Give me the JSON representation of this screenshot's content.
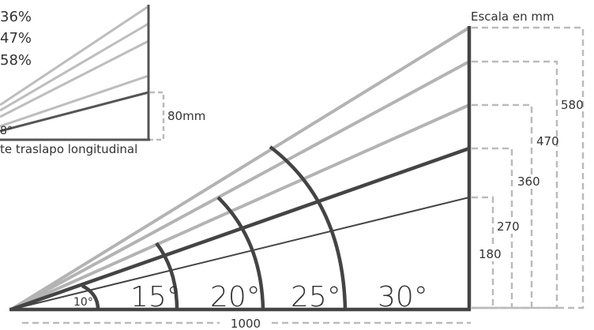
{
  "scale_title": "Escala en mm",
  "base_length_label": "1000",
  "heights": [
    {
      "label": "180",
      "angle": 10
    },
    {
      "label": "270",
      "angle": 15
    },
    {
      "label": "360",
      "angle": 20
    },
    {
      "label": "470",
      "angle": 25
    },
    {
      "label": "580",
      "angle": 30
    }
  ],
  "angle_labels": {
    "a10": "10°",
    "a15": "15°",
    "a20": "20°",
    "a25": "25°",
    "a30": "30°"
  },
  "inset": {
    "percentages": [
      "36%",
      "47%",
      "58%"
    ],
    "angle_label": "8°",
    "height_label": "80mm",
    "caption": "te traslapo longitudinal"
  },
  "colors": {
    "dark": "#444444",
    "light": "#b3b3b3",
    "dashed": "#bbbbbb"
  }
}
